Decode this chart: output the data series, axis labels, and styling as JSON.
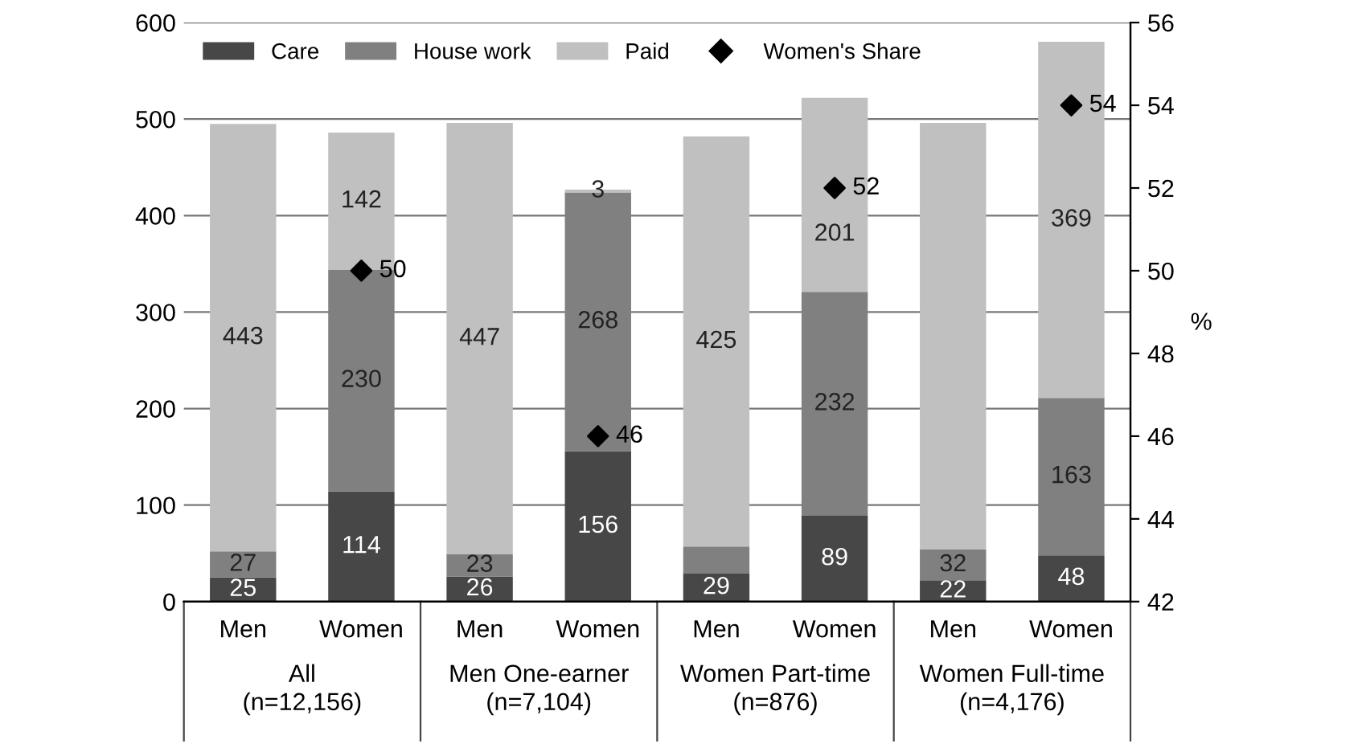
{
  "chart_data": {
    "type": "bar",
    "stacked": true,
    "categories": [
      "Men",
      "Women",
      "Men",
      "Women",
      "Men",
      "Women",
      "Men",
      "Women"
    ],
    "series": [
      {
        "name": "Care",
        "color": "#474747",
        "values": [
          25,
          114,
          26,
          156,
          29,
          89,
          22,
          48
        ],
        "value_labels": [
          "25",
          "114",
          "26",
          "156",
          "29",
          "89",
          "22",
          "48"
        ]
      },
      {
        "name": "House work",
        "color": "#808080",
        "values": [
          27,
          230,
          23,
          268,
          28,
          232,
          32,
          163
        ],
        "value_labels": [
          "27",
          "230",
          "23",
          "268",
          null,
          "232",
          "32",
          "163"
        ]
      },
      {
        "name": "Paid",
        "color": "#c0c0c0",
        "values": [
          443,
          142,
          447,
          3,
          425,
          201,
          442,
          369
        ],
        "value_labels": [
          "443",
          "142",
          "447",
          "3",
          "425",
          "201",
          null,
          "369"
        ]
      },
      {
        "name": "Women's Share",
        "type": "scatter",
        "axis": "y2",
        "marker": "diamond",
        "color": "#000000",
        "values": [
          null,
          50,
          null,
          46,
          null,
          52,
          null,
          54
        ],
        "value_labels": [
          null,
          "50",
          null,
          "46",
          null,
          "52",
          null,
          "54"
        ]
      }
    ],
    "ylim": [
      0,
      600
    ],
    "yticks": [
      0,
      100,
      200,
      300,
      400,
      500,
      600
    ],
    "y2lim": [
      42,
      56
    ],
    "y2ticks": [
      42,
      44,
      46,
      48,
      50,
      52,
      54,
      56
    ],
    "y2label": "%",
    "grid": "y",
    "legend": "top left",
    "annotations": [
      "All\n(n=12,156)",
      "Men One-earner\n(n=7,104)",
      "Women Part-time\n(n=876)",
      "Women Full-time\n(n=4,176)"
    ]
  }
}
